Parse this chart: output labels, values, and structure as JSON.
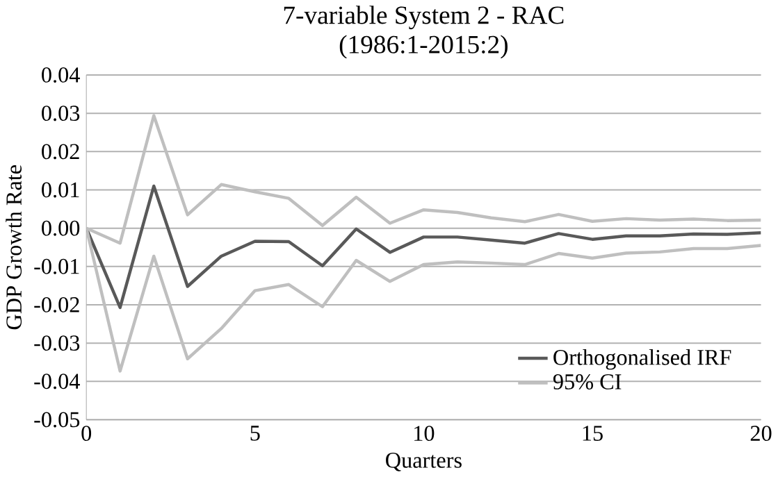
{
  "chart_data": {
    "type": "line",
    "title": "7-variable System 2 - RAC",
    "subtitle": "(1986:1-2015:2)",
    "xlabel": "Quarters",
    "ylabel": "GDP Growth Rate",
    "x": [
      0,
      1,
      2,
      3,
      4,
      5,
      6,
      7,
      8,
      9,
      10,
      11,
      12,
      13,
      14,
      15,
      16,
      17,
      18,
      19,
      20
    ],
    "series": [
      {
        "name": "Orthogonalised IRF",
        "color": "#595959",
        "values": [
          0,
          -0.0207,
          0.011,
          -0.0152,
          -0.0073,
          -0.0034,
          -0.0035,
          -0.0098,
          -0.0002,
          -0.0063,
          -0.0023,
          -0.0023,
          -0.0031,
          -0.0039,
          -0.0014,
          -0.0029,
          -0.002,
          -0.002,
          -0.0015,
          -0.0016,
          -0.0012
        ]
      },
      {
        "name": "95% CI",
        "color": "#bfbfbf",
        "values": [
          0,
          -0.0039,
          0.0294,
          0.0035,
          0.0114,
          0.0095,
          0.0078,
          0.0007,
          0.0081,
          0.0013,
          0.0048,
          0.0041,
          0.0027,
          0.0017,
          0.0036,
          0.0018,
          0.0025,
          0.0021,
          0.0024,
          0.002,
          0.0021
        ]
      },
      {
        "color": "#bfbfbf",
        "values": [
          0,
          -0.0373,
          -0.0073,
          -0.0341,
          -0.0262,
          -0.0163,
          -0.0147,
          -0.0205,
          -0.0084,
          -0.0139,
          -0.0095,
          -0.0088,
          -0.0091,
          -0.0095,
          -0.0066,
          -0.0078,
          -0.0065,
          -0.0062,
          -0.0053,
          -0.0053,
          -0.0045
        ]
      }
    ],
    "xlim": [
      0,
      20
    ],
    "xticks": [
      0,
      5,
      10,
      15,
      20
    ],
    "ylim": [
      -0.05,
      0.04
    ],
    "yticks": [
      {
        "value": -0.05,
        "label": "-0.05"
      },
      {
        "value": -0.04,
        "label": "-0.04"
      },
      {
        "value": -0.03,
        "label": "-0.03"
      },
      {
        "value": -0.02,
        "label": "-0.02"
      },
      {
        "value": -0.01,
        "label": "-0.01"
      },
      {
        "value": 0,
        "label": "0.00"
      },
      {
        "value": 0.01,
        "label": "0.01"
      },
      {
        "value": 0.02,
        "label": "0.02"
      },
      {
        "value": 0.03,
        "label": "0.03"
      },
      {
        "value": 0.04,
        "label": "0.04"
      }
    ],
    "grid": "y",
    "legend": "bottom right",
    "marker": "none",
    "line_style": "solid"
  }
}
